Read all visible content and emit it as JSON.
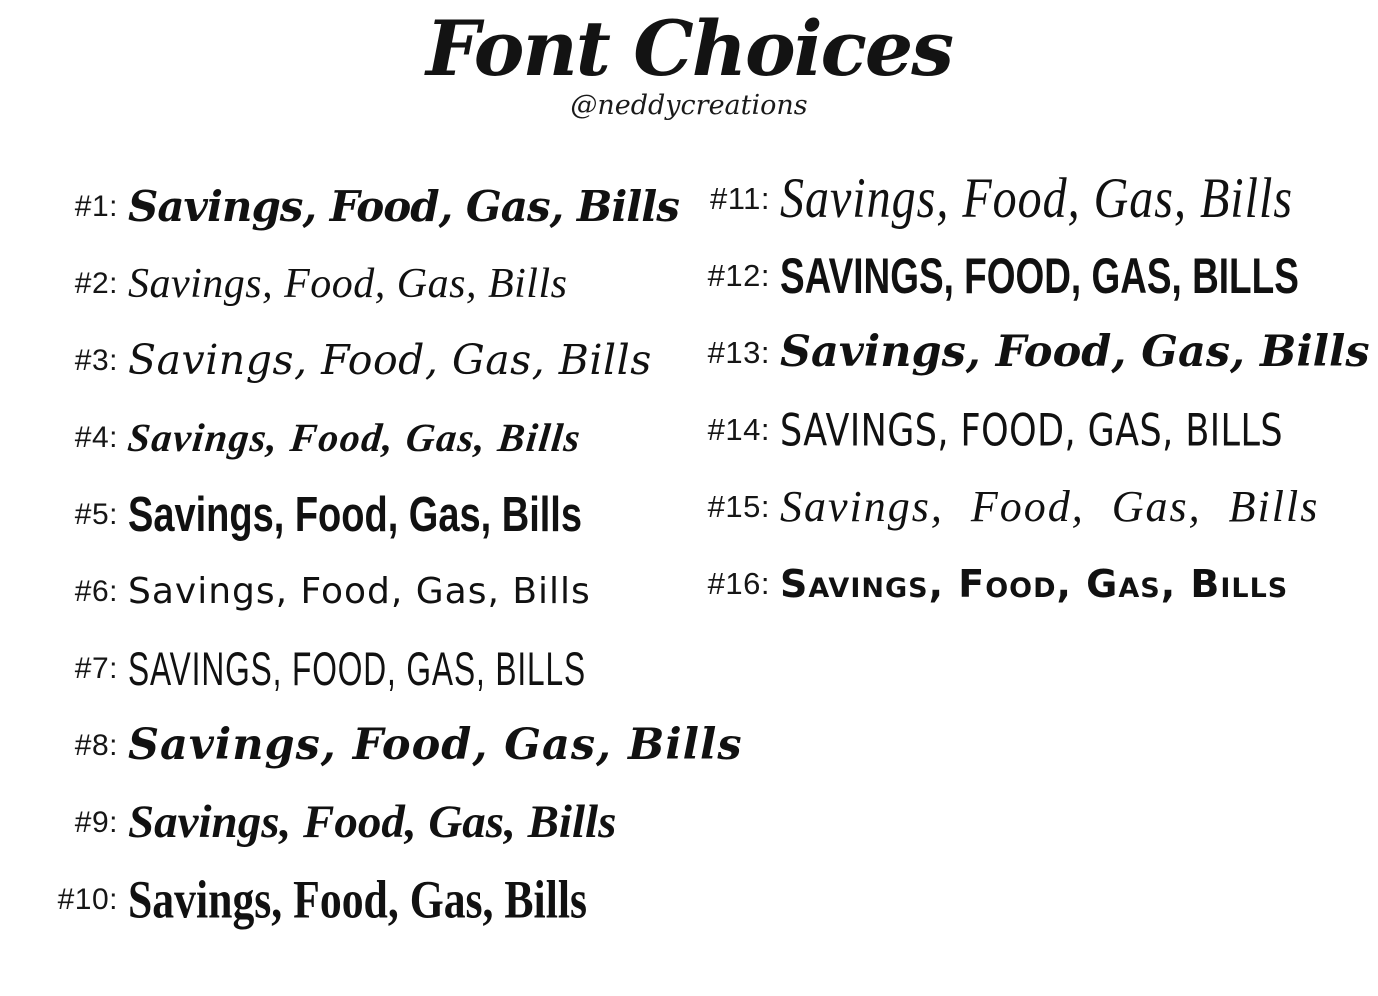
{
  "page": {
    "background_color": "#ffffff",
    "text_color": "#111111"
  },
  "header": {
    "title": "Font Choices",
    "handle": "@neddycreations"
  },
  "items": [
    {
      "number": "#1:",
      "text": "Savings, Food, Gas, Bills",
      "style": "bold-curly-script"
    },
    {
      "number": "#2:",
      "text": "Savings, Food, Gas, Bills",
      "style": "light-casual-script"
    },
    {
      "number": "#3:",
      "text": "Savings, Food, Gas, Bills",
      "style": "rounded-loop-script"
    },
    {
      "number": "#4:",
      "text": "Savings, Food, Gas, Bills",
      "style": "slanted-brush-script"
    },
    {
      "number": "#5:",
      "text": "Savings, Food, Gas, Bills",
      "style": "bold-condensed-marker"
    },
    {
      "number": "#6:",
      "text": "Savings, Food, Gas, Bills",
      "style": "quirky-unicase-handprint"
    },
    {
      "number": "#7:",
      "text": "SAVINGS, FOOD, GAS, BILLS",
      "style": "tall-thin-caps"
    },
    {
      "number": "#8:",
      "text": "Savings, Food, Gas, Bills",
      "style": "calligraphy-heart-dots"
    },
    {
      "number": "#9:",
      "text": "Savings, Food, Gas, Bills",
      "style": "formal-flourish-calligraphy"
    },
    {
      "number": "#10:",
      "text": "Savings, Food, Gas, Bills",
      "style": "bold-condensed-serif"
    },
    {
      "number": "#11:",
      "text": "Savings, Food, Gas, Bills",
      "style": "tall-thin-signature-script"
    },
    {
      "number": "#12:",
      "text": "SAVINGS, FOOD, GAS, BILLS",
      "style": "condensed-caps-handprint"
    },
    {
      "number": "#13:",
      "text": "Savings, Food, Gas, Bills",
      "style": "chunky-script-heart-dots"
    },
    {
      "number": "#14:",
      "text": "SAVINGS, FOOD, GAS, BILLS",
      "style": "unicase-caps-handprint"
    },
    {
      "number": "#15:",
      "text": "Savings, Food, Gas, Bills",
      "style": "delicate-spaced-calligraphy"
    },
    {
      "number": "#16:",
      "text": "Savings, Food, Gas, Bills",
      "style": "chunky-rounded-bold"
    }
  ]
}
